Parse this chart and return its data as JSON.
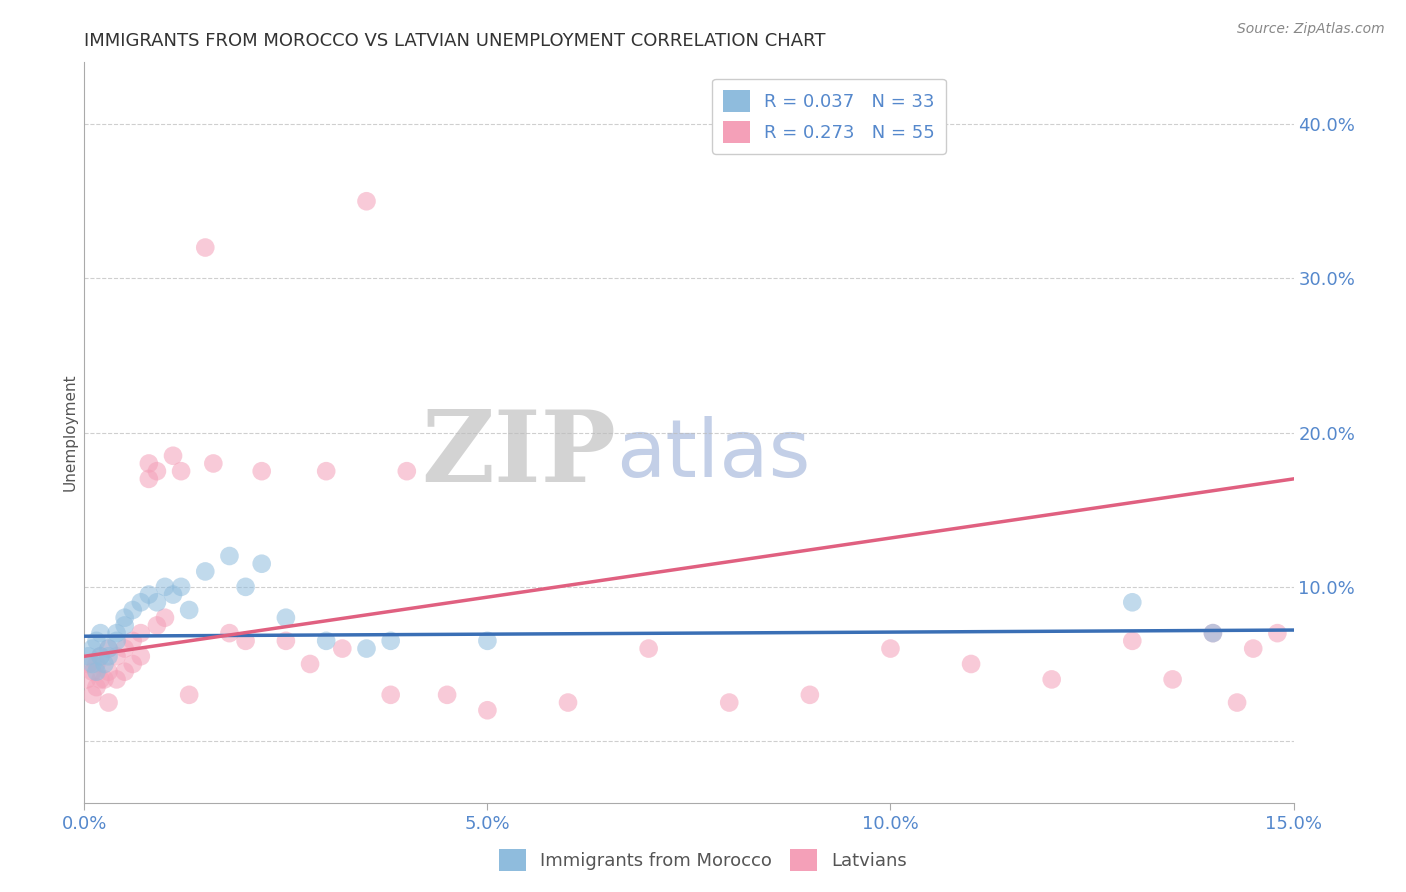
{
  "title": "IMMIGRANTS FROM MOROCCO VS LATVIAN UNEMPLOYMENT CORRELATION CHART",
  "source_text": "Source: ZipAtlas.com",
  "ylabel": "Unemployment",
  "xlim": [
    0.0,
    0.15
  ],
  "ylim": [
    -0.04,
    0.44
  ],
  "xticks": [
    0.0,
    0.05,
    0.1,
    0.15
  ],
  "xticklabels": [
    "0.0%",
    "5.0%",
    "10.0%",
    "15.0%"
  ],
  "yticks": [
    0.0,
    0.1,
    0.2,
    0.3,
    0.4
  ],
  "yticklabels": [
    "",
    "10.0%",
    "20.0%",
    "30.0%",
    "40.0%"
  ],
  "blue_color": "#8fbcdd",
  "pink_color": "#f4a0b8",
  "blue_line_color": "#3a6fb5",
  "pink_line_color": "#e06080",
  "tick_color": "#5588cc",
  "legend_blue_label": "R = 0.037   N = 33",
  "legend_pink_label": "R = 0.273   N = 55",
  "legend_label_blue": "Immigrants from Morocco",
  "legend_label_pink": "Latvians",
  "background_color": "#ffffff",
  "blue_scatter_x": [
    0.0005,
    0.001,
    0.001,
    0.0015,
    0.0015,
    0.002,
    0.002,
    0.0025,
    0.003,
    0.003,
    0.004,
    0.004,
    0.005,
    0.005,
    0.006,
    0.007,
    0.008,
    0.009,
    0.01,
    0.011,
    0.012,
    0.013,
    0.015,
    0.018,
    0.02,
    0.022,
    0.025,
    0.03,
    0.035,
    0.038,
    0.05,
    0.13,
    0.14
  ],
  "blue_scatter_y": [
    0.055,
    0.05,
    0.06,
    0.045,
    0.065,
    0.055,
    0.07,
    0.05,
    0.06,
    0.055,
    0.065,
    0.07,
    0.075,
    0.08,
    0.085,
    0.09,
    0.095,
    0.09,
    0.1,
    0.095,
    0.1,
    0.085,
    0.11,
    0.12,
    0.1,
    0.115,
    0.08,
    0.065,
    0.06,
    0.065,
    0.065,
    0.09,
    0.07
  ],
  "pink_scatter_x": [
    0.0003,
    0.0005,
    0.001,
    0.001,
    0.0015,
    0.0015,
    0.002,
    0.002,
    0.0025,
    0.003,
    0.003,
    0.003,
    0.004,
    0.004,
    0.005,
    0.005,
    0.006,
    0.006,
    0.007,
    0.007,
    0.008,
    0.008,
    0.009,
    0.009,
    0.01,
    0.011,
    0.012,
    0.013,
    0.015,
    0.016,
    0.018,
    0.02,
    0.022,
    0.025,
    0.028,
    0.03,
    0.032,
    0.035,
    0.038,
    0.04,
    0.045,
    0.05,
    0.06,
    0.07,
    0.08,
    0.09,
    0.1,
    0.11,
    0.12,
    0.13,
    0.135,
    0.14,
    0.143,
    0.145,
    0.148
  ],
  "pink_scatter_y": [
    0.04,
    0.05,
    0.045,
    0.03,
    0.05,
    0.035,
    0.055,
    0.04,
    0.04,
    0.06,
    0.045,
    0.025,
    0.055,
    0.04,
    0.06,
    0.045,
    0.065,
    0.05,
    0.07,
    0.055,
    0.18,
    0.17,
    0.075,
    0.175,
    0.08,
    0.185,
    0.175,
    0.03,
    0.32,
    0.18,
    0.07,
    0.065,
    0.175,
    0.065,
    0.05,
    0.175,
    0.06,
    0.35,
    0.03,
    0.175,
    0.03,
    0.02,
    0.025,
    0.06,
    0.025,
    0.03,
    0.06,
    0.05,
    0.04,
    0.065,
    0.04,
    0.07,
    0.025,
    0.06,
    0.07
  ],
  "blue_line_x": [
    0.0,
    0.15
  ],
  "blue_line_y": [
    0.068,
    0.072
  ],
  "pink_line_x": [
    0.0,
    0.15
  ],
  "pink_line_y": [
    0.055,
    0.17
  ]
}
